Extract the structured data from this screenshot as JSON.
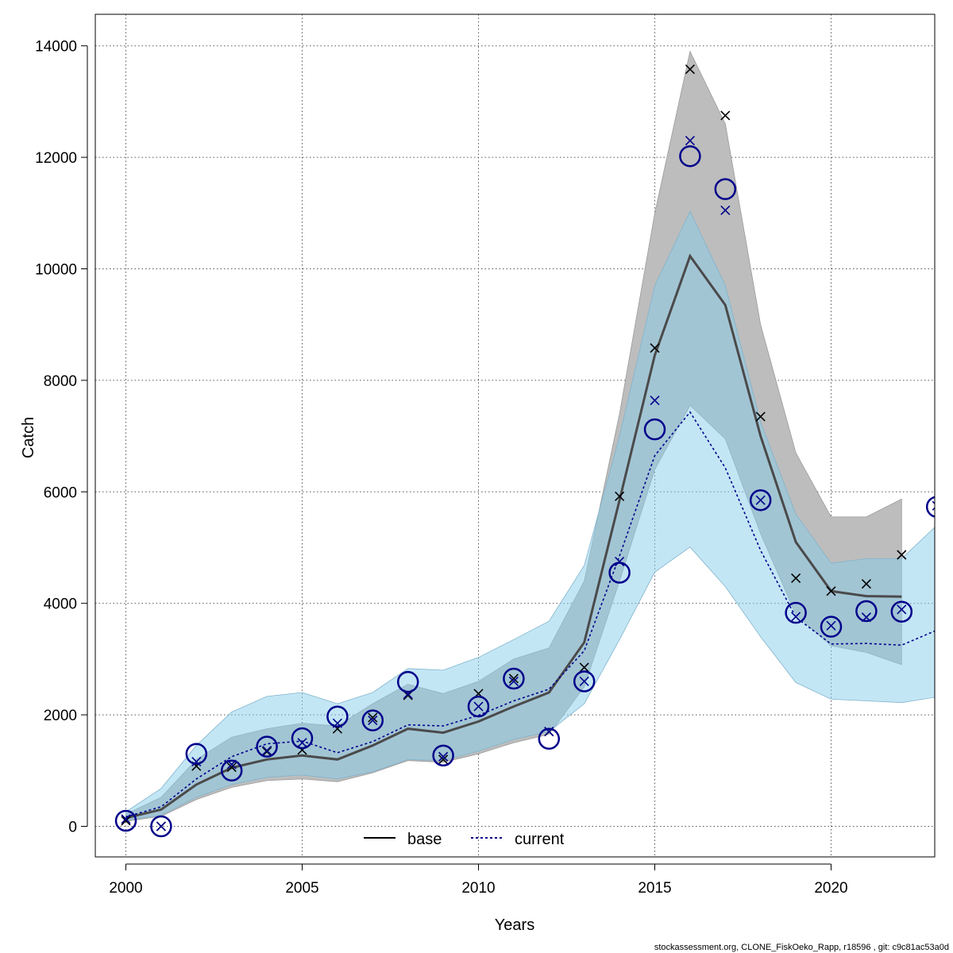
{
  "chart_data": {
    "type": "line",
    "xlabel": "Years",
    "ylabel": "Catch",
    "xlim": [
      1999.1,
      2023
    ],
    "ylim": [
      -550,
      14600
    ],
    "x_ticks": [
      2000,
      2005,
      2010,
      2015,
      2020
    ],
    "y_ticks": [
      0,
      2000,
      4000,
      6000,
      8000,
      10000,
      12000,
      14000
    ],
    "grid": true,
    "legend_position": "bottom-center",
    "footer": "stockassessment.org, CLONE_FiskOeko_Rapp, r18596 , git: c9c81ac53a0d",
    "colors": {
      "base_band": "#bdbdbd",
      "current_band": "#87ceeb",
      "base_line": "#000000",
      "current_line": "#00008b",
      "current_dots": "#00008b",
      "base_marks": "#000000",
      "current_marks": "#00008b"
    },
    "series": [
      {
        "name": "base",
        "style": "solid",
        "years": [
          2000,
          2001,
          2002,
          2003,
          2004,
          2005,
          2006,
          2007,
          2008,
          2009,
          2010,
          2011,
          2012,
          2013,
          2014,
          2015,
          2016,
          2017,
          2018,
          2019,
          2020,
          2021,
          2022
        ],
        "estimate": [
          150,
          300,
          750,
          1050,
          1200,
          1270,
          1200,
          1450,
          1750,
          1680,
          1880,
          2150,
          2400,
          3300,
          5850,
          8450,
          10230,
          9350,
          7000,
          5100,
          4220,
          4130,
          4120
        ],
        "lower": [
          90,
          180,
          480,
          700,
          820,
          850,
          800,
          960,
          1180,
          1150,
          1300,
          1500,
          1650,
          2500,
          4400,
          6400,
          7550,
          6950,
          5250,
          3800,
          3240,
          3120,
          2900
        ],
        "upper": [
          220,
          520,
          1200,
          1600,
          1750,
          1850,
          1800,
          2200,
          2550,
          2380,
          2600,
          3000,
          3200,
          4400,
          7400,
          11000,
          13900,
          12600,
          9000,
          6700,
          5550,
          5550,
          5870
        ],
        "observed": [
          100,
          0,
          1080,
          1060,
          1340,
          1370,
          1750,
          1950,
          2350,
          1200,
          2380,
          2650,
          1700,
          2850,
          5920,
          8580,
          13580,
          12750,
          7350,
          4450,
          4220,
          4350,
          4870
        ]
      },
      {
        "name": "current",
        "style": "dotted",
        "years": [
          2000,
          2001,
          2002,
          2003,
          2004,
          2005,
          2006,
          2007,
          2008,
          2009,
          2010,
          2011,
          2012,
          2013,
          2014,
          2015,
          2016,
          2017,
          2018,
          2019,
          2020,
          2021,
          2022,
          2023
        ],
        "estimate": [
          170,
          350,
          850,
          1250,
          1480,
          1530,
          1320,
          1520,
          1820,
          1800,
          1990,
          2250,
          2460,
          3150,
          4850,
          6650,
          7430,
          6430,
          4950,
          3750,
          3270,
          3280,
          3250,
          3520
        ],
        "lower": [
          110,
          200,
          520,
          750,
          880,
          920,
          850,
          980,
          1200,
          1180,
          1350,
          1560,
          1700,
          2200,
          3350,
          4560,
          5010,
          4300,
          3400,
          2580,
          2280,
          2250,
          2220,
          2320
        ],
        "upper": [
          260,
          680,
          1450,
          2050,
          2330,
          2400,
          2200,
          2400,
          2830,
          2800,
          3030,
          3350,
          3680,
          4680,
          7000,
          9700,
          11030,
          9700,
          7250,
          5600,
          4720,
          4800,
          4800,
          5400
        ],
        "observed": [
          130,
          0,
          1160,
          1110,
          1360,
          1500,
          1850,
          1900,
          2370,
          1250,
          2150,
          2600,
          1700,
          2600,
          4750,
          7640,
          12300,
          11050,
          5850,
          3760,
          3600,
          3750,
          3890,
          5750
        ],
        "circles": [
          100,
          0,
          1300,
          1000,
          1430,
          1580,
          1970,
          1900,
          2590,
          1270,
          2150,
          2650,
          1570,
          2600,
          4550,
          7120,
          12020,
          11430,
          5850,
          3830,
          3580,
          3860,
          3850,
          5730
        ]
      }
    ]
  }
}
